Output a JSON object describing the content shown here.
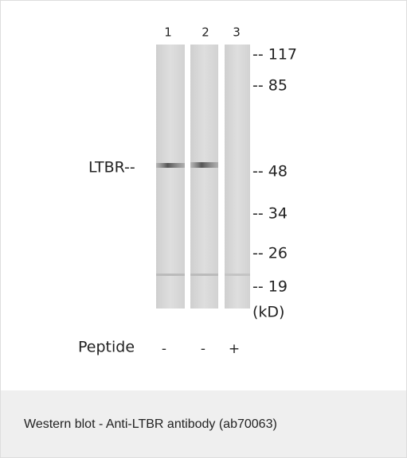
{
  "blot": {
    "lane_labels": [
      "1",
      "2",
      "3"
    ],
    "band_label": "LTBR--",
    "markers": [
      "-- 117",
      "-- 85",
      "-- 48",
      "-- 34",
      "-- 26",
      "-- 19"
    ],
    "unit": "(kD)",
    "peptide_label": "Peptide",
    "peptide_states": [
      "-",
      "-",
      "+"
    ]
  },
  "caption": "Western blot - Anti-LTBR antibody (ab70063)"
}
